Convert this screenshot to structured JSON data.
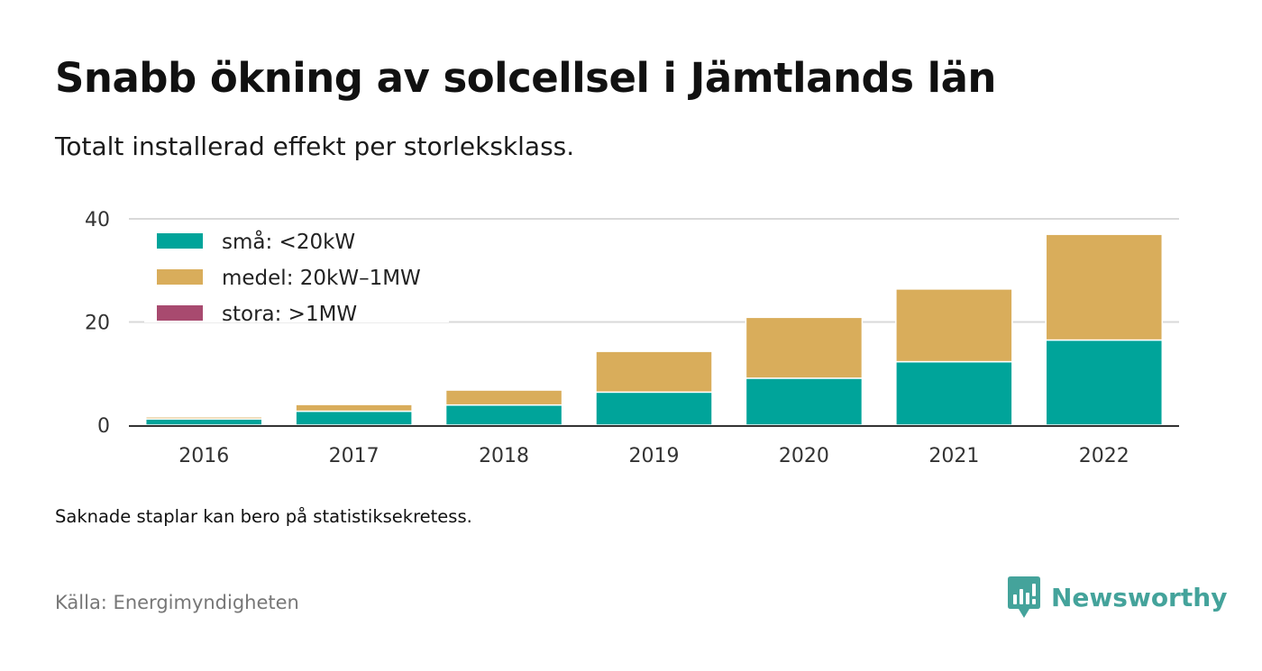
{
  "title": "Snabb ökning av solcellsel i Jämtlands län",
  "subtitle": "Totalt installerad effekt per storleksklass.",
  "note": "Saknade staplar kan bero på statistiksekretess.",
  "source": "Källa: Energimyndigheten",
  "brand": {
    "name": "Newsworthy",
    "logo_icon": "newsworthy-bar-chart-logo-icon",
    "color": "#44a39b"
  },
  "chart_data": {
    "type": "bar",
    "stacked": true,
    "categories": [
      "2016",
      "2017",
      "2018",
      "2019",
      "2020",
      "2021",
      "2022"
    ],
    "series": [
      {
        "name": "små: <20kW",
        "color": "#00a49a",
        "values": [
          1.2,
          2.7,
          3.9,
          6.4,
          9.1,
          12.3,
          16.5
        ]
      },
      {
        "name": "medel: 20kW–1MW",
        "color": "#d9ad5b",
        "values": [
          0.4,
          1.3,
          2.9,
          7.9,
          11.8,
          14.1,
          20.5
        ]
      },
      {
        "name": "stora: >1MW",
        "color": "#a84a6f",
        "values": [
          0,
          0,
          0,
          0,
          0,
          0,
          0
        ]
      }
    ],
    "yticks": [
      0,
      20,
      40
    ],
    "ylim": [
      0,
      40
    ],
    "grid": true,
    "legend_position": "top-left",
    "xlabel": "",
    "ylabel": ""
  }
}
